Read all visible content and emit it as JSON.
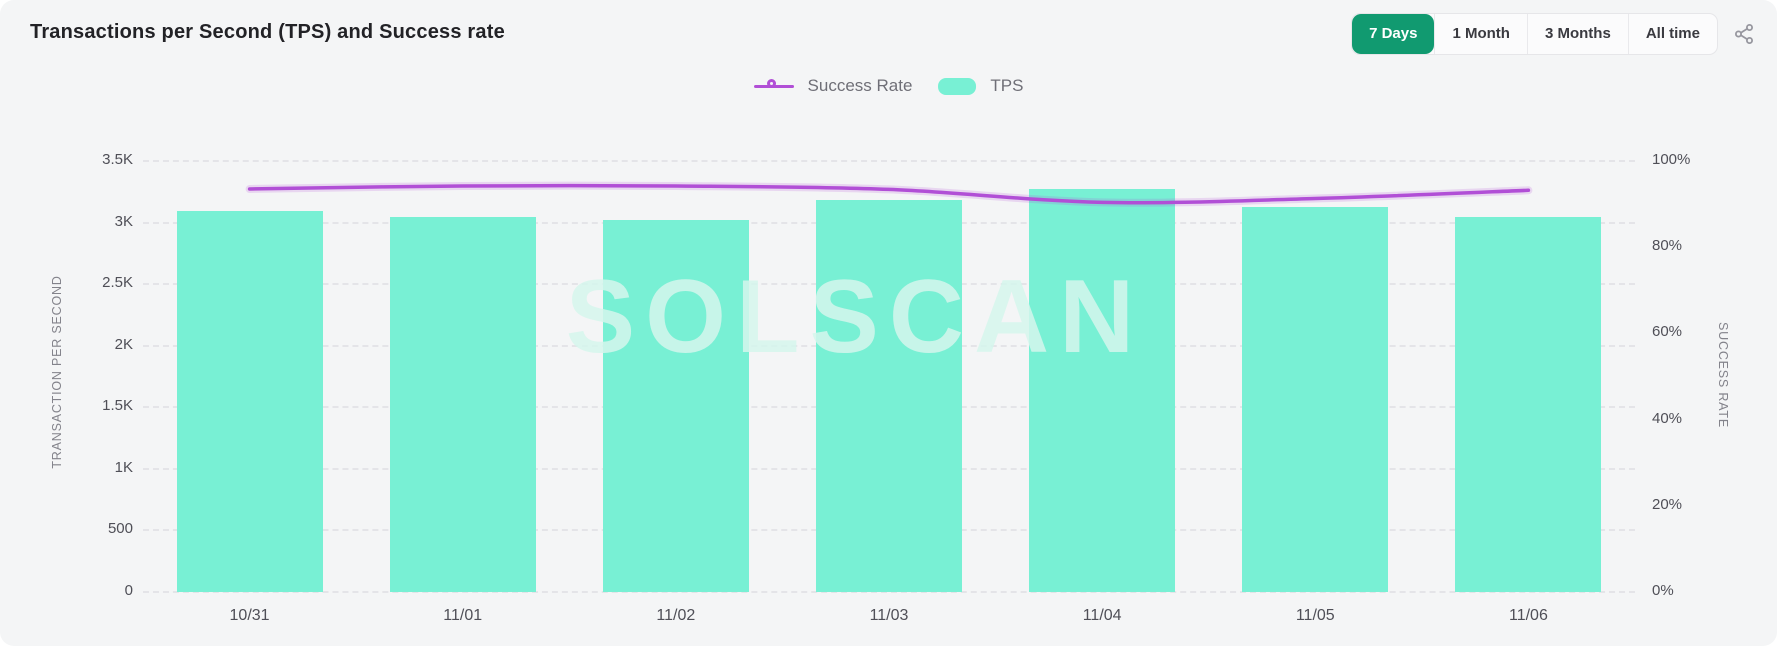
{
  "header": {
    "title": "Transactions per Second (TPS) and Success rate",
    "time_ranges": [
      {
        "label": "7 Days",
        "active": true
      },
      {
        "label": "1 Month",
        "active": false
      },
      {
        "label": "3 Months",
        "active": false
      },
      {
        "label": "All time",
        "active": false
      }
    ]
  },
  "legend": {
    "items": [
      {
        "type": "line",
        "label": "Success Rate"
      },
      {
        "type": "bar",
        "label": "TPS"
      }
    ]
  },
  "watermark": "SOLSCAN",
  "colors": {
    "card_bg": "#f4f5f6",
    "bar": "#78f0d4",
    "line": "#b14fd6",
    "active_button_bg": "#119a70",
    "active_button_text": "#ffffff",
    "grid": "#e4e4e8",
    "tick_text": "#4f4f57",
    "axis_title_text": "#83838b",
    "share_icon": "#97979f"
  },
  "chart_data": {
    "type": "bar+line",
    "title": "Transactions per Second (TPS) and Success rate",
    "categories": [
      "10/31",
      "11/01",
      "11/02",
      "11/03",
      "11/04",
      "11/05",
      "11/06"
    ],
    "series": [
      {
        "name": "TPS",
        "type": "bar",
        "axis": "left",
        "values": [
          3094,
          3045,
          3021,
          3183,
          3272,
          3126,
          3045
        ]
      },
      {
        "name": "Success Rate",
        "type": "line",
        "axis": "right",
        "values": [
          93.5,
          94.2,
          94.2,
          93.4,
          90.4,
          91.3,
          93.2
        ]
      }
    ],
    "left_axis": {
      "title": "TRANSACTION PER SECOND",
      "range": [
        0,
        3500
      ],
      "tick_values": [
        0,
        500,
        1000,
        1500,
        2000,
        2500,
        3000,
        3500
      ],
      "tick_labels": [
        "0",
        "500",
        "1K",
        "1.5K",
        "2K",
        "2.5K",
        "3K",
        "3.5K"
      ]
    },
    "right_axis": {
      "title": "SUCCESS RATE",
      "range": [
        0,
        100
      ],
      "tick_values": [
        0,
        20,
        40,
        60,
        80,
        100
      ],
      "tick_labels": [
        "0%",
        "20%",
        "40%",
        "60%",
        "80%",
        "100%"
      ]
    },
    "grid": true,
    "legend_position": "top-center"
  }
}
